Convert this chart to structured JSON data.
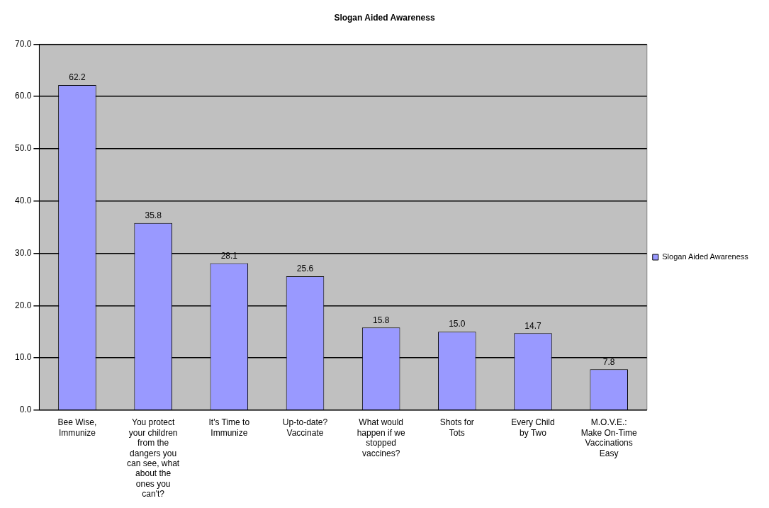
{
  "chart_data": {
    "type": "bar",
    "title": "Slogan Aided Awareness",
    "categories": [
      "Bee Wise, Immunize",
      "You protect your children from the dangers you can see, what about the ones you can't?",
      "It's Time to Immunize",
      "Up-to-date? Vaccinate",
      "What would happen if we stopped vaccines?",
      "Shots for Tots",
      "Every Child by Two",
      "M.O.V.E.: Make On-Time Vaccinations Easy"
    ],
    "series": [
      {
        "name": "Slogan Aided Awareness",
        "color": "#9999ff",
        "values": [
          62.2,
          35.8,
          28.1,
          25.6,
          15.8,
          15.0,
          14.7,
          7.8
        ],
        "value_labels": [
          "62.2",
          "35.8",
          "28.1",
          "25.6",
          "15.8",
          "15.0",
          "14.7",
          "7.8"
        ]
      }
    ],
    "ylim": [
      0,
      70
    ],
    "yticks": [
      {
        "value": 0,
        "label": "0.0"
      },
      {
        "value": 10,
        "label": "10.0"
      },
      {
        "value": 20,
        "label": "20.0"
      },
      {
        "value": 30,
        "label": "30.0"
      },
      {
        "value": 40,
        "label": "40.0"
      },
      {
        "value": 50,
        "label": "50.0"
      },
      {
        "value": 60,
        "label": "60.0"
      },
      {
        "value": 70,
        "label": "70.0"
      }
    ],
    "grid": "y",
    "legend": "right"
  }
}
